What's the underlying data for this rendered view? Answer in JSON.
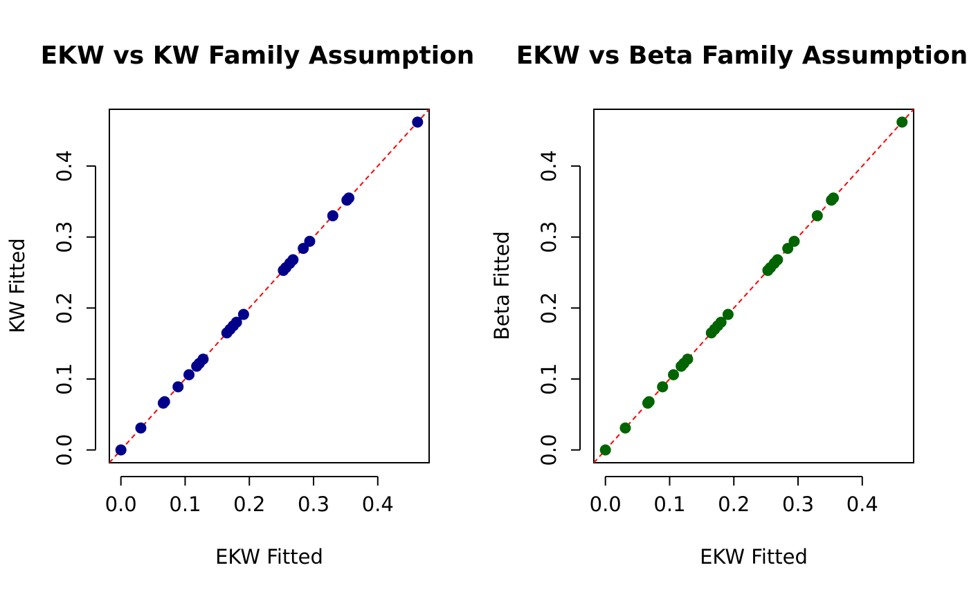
{
  "chart_data": [
    {
      "type": "scatter",
      "title": "EKW vs KW Family Assumption",
      "xlabel": "EKW Fitted",
      "ylabel": "KW Fitted",
      "xlim": [
        -0.018,
        0.48
      ],
      "ylim": [
        -0.018,
        0.48
      ],
      "x_ticks": [
        "0.0",
        "0.1",
        "0.2",
        "0.3",
        "0.4"
      ],
      "y_ticks": [
        "0.0",
        "0.1",
        "0.2",
        "0.3",
        "0.4"
      ],
      "point_color": "#00008b",
      "reference_line": {
        "slope": 1,
        "intercept": 0,
        "color": "#ff0000",
        "style": "dashed"
      },
      "grid": false,
      "series": [
        {
          "x": [
            0.0,
            0.031,
            0.066,
            0.068,
            0.089,
            0.106,
            0.118,
            0.122,
            0.128,
            0.165,
            0.17,
            0.175,
            0.18,
            0.191,
            0.253,
            0.257,
            0.263,
            0.268,
            0.284,
            0.294,
            0.33,
            0.352,
            0.355,
            0.462
          ],
          "y": [
            0.0,
            0.031,
            0.066,
            0.068,
            0.089,
            0.106,
            0.118,
            0.122,
            0.128,
            0.165,
            0.17,
            0.175,
            0.18,
            0.191,
            0.253,
            0.257,
            0.263,
            0.268,
            0.284,
            0.294,
            0.33,
            0.352,
            0.355,
            0.462
          ]
        }
      ]
    },
    {
      "type": "scatter",
      "title": "EKW vs Beta Family Assumption",
      "xlabel": "EKW Fitted",
      "ylabel": "Beta Fitted",
      "xlim": [
        -0.018,
        0.48
      ],
      "ylim": [
        -0.018,
        0.48
      ],
      "x_ticks": [
        "0.0",
        "0.1",
        "0.2",
        "0.3",
        "0.4"
      ],
      "y_ticks": [
        "0.0",
        "0.1",
        "0.2",
        "0.3",
        "0.4"
      ],
      "point_color": "#006400",
      "reference_line": {
        "slope": 1,
        "intercept": 0,
        "color": "#ff0000",
        "style": "dashed"
      },
      "grid": false,
      "series": [
        {
          "x": [
            0.0,
            0.031,
            0.066,
            0.068,
            0.089,
            0.106,
            0.118,
            0.122,
            0.128,
            0.165,
            0.17,
            0.175,
            0.18,
            0.191,
            0.253,
            0.257,
            0.263,
            0.268,
            0.284,
            0.294,
            0.33,
            0.352,
            0.355,
            0.462
          ],
          "y": [
            0.0,
            0.031,
            0.066,
            0.068,
            0.089,
            0.106,
            0.118,
            0.122,
            0.128,
            0.165,
            0.17,
            0.175,
            0.18,
            0.191,
            0.253,
            0.257,
            0.263,
            0.268,
            0.284,
            0.294,
            0.33,
            0.352,
            0.355,
            0.462
          ]
        }
      ]
    }
  ]
}
